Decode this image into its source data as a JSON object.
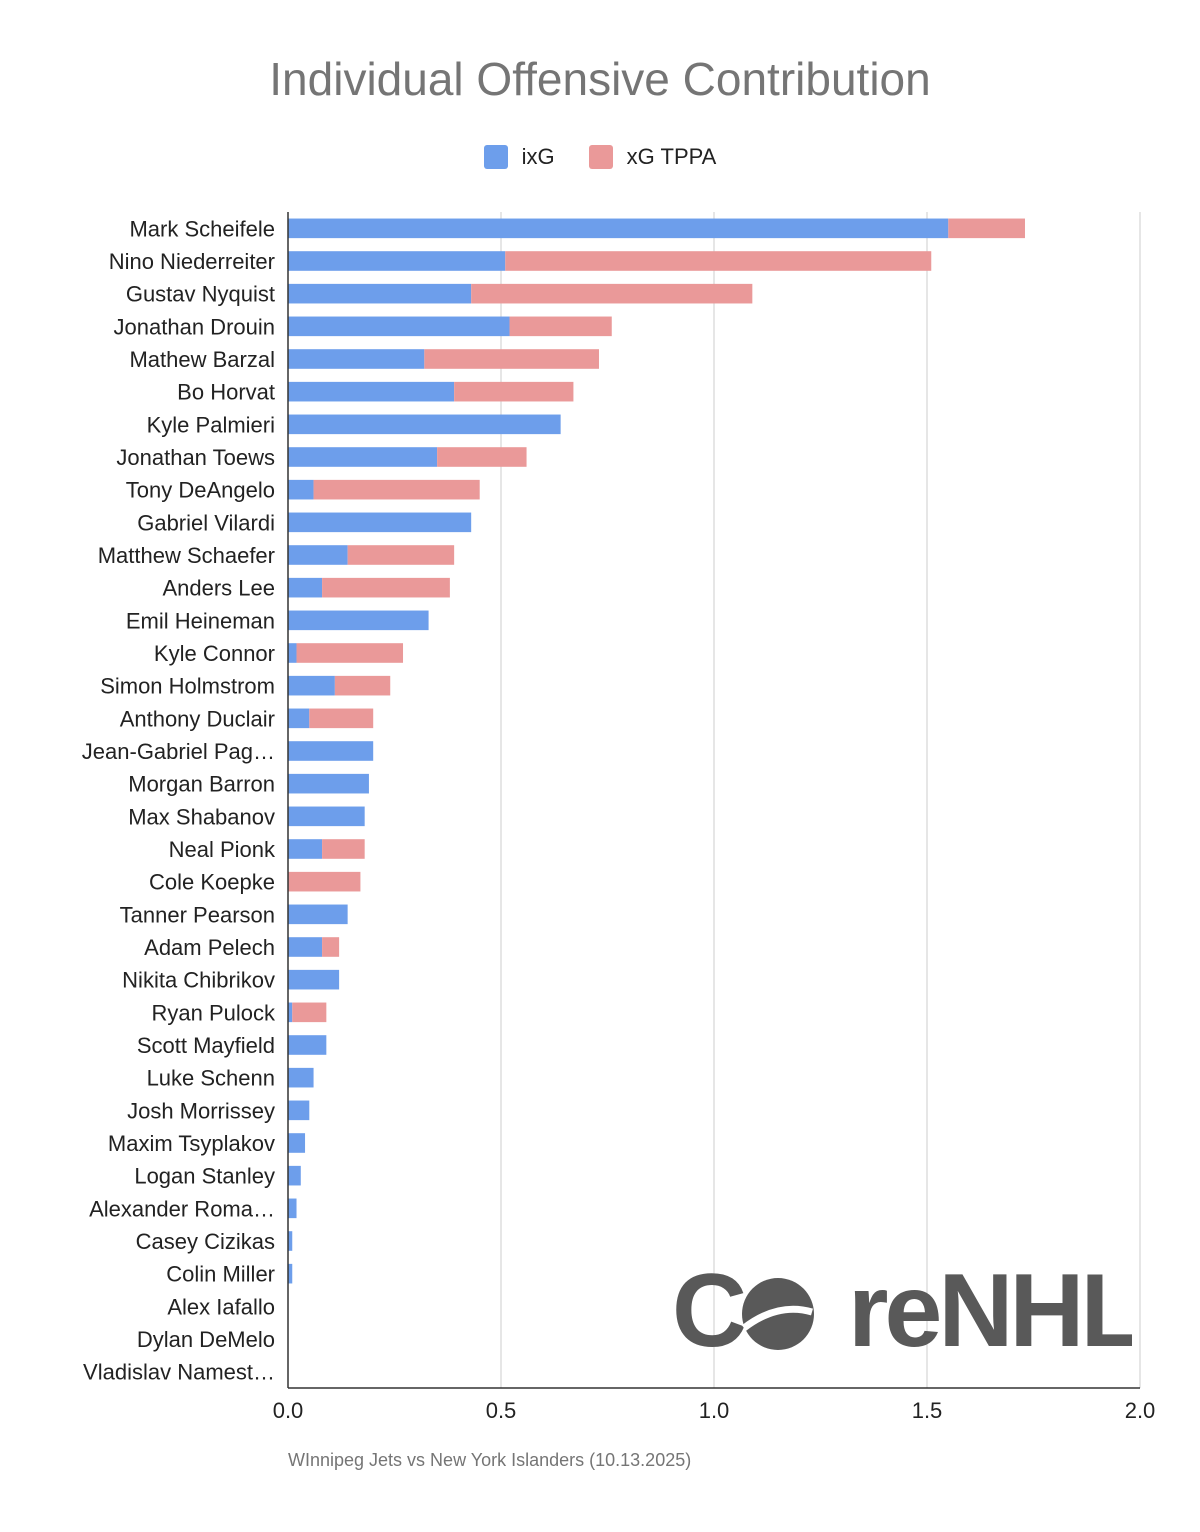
{
  "chart_data": {
    "type": "bar",
    "orientation": "horizontal",
    "stacked": true,
    "title": "Individual Offensive Contribution",
    "legend_position": "top",
    "xlabel": "",
    "ylabel": "",
    "xlim": [
      0,
      2.0
    ],
    "xticks": [
      "0.0",
      "0.5",
      "1.0",
      "1.5",
      "2.0"
    ],
    "categories": [
      "Mark Scheifele",
      "Nino Niederreiter",
      "Gustav Nyquist",
      "Jonathan Drouin",
      "Mathew Barzal",
      "Bo Horvat",
      "Kyle Palmieri",
      "Jonathan Toews",
      "Tony DeAngelo",
      "Gabriel Vilardi",
      "Matthew Schaefer",
      "Anders Lee",
      "Emil Heineman",
      "Kyle Connor",
      "Simon Holmstrom",
      "Anthony Duclair",
      "Jean-Gabriel Pag…",
      "Morgan Barron",
      "Max Shabanov",
      "Neal Pionk",
      "Cole Koepke",
      "Tanner Pearson",
      "Adam Pelech",
      "Nikita Chibrikov",
      "Ryan Pulock",
      "Scott Mayfield",
      "Luke Schenn",
      "Josh Morrissey",
      "Maxim Tsyplakov",
      "Logan Stanley",
      "Alexander Roma…",
      "Casey Cizikas",
      "Colin Miller",
      "Alex Iafallo",
      "Dylan DeMelo",
      "Vladislav Namest…"
    ],
    "series": [
      {
        "name": "ixG",
        "color": "#6d9eeb",
        "values": [
          1.55,
          0.51,
          0.43,
          0.52,
          0.32,
          0.39,
          0.64,
          0.35,
          0.06,
          0.43,
          0.14,
          0.08,
          0.33,
          0.02,
          0.11,
          0.05,
          0.2,
          0.19,
          0.18,
          0.08,
          0.0,
          0.14,
          0.08,
          0.12,
          0.01,
          0.09,
          0.06,
          0.05,
          0.04,
          0.03,
          0.02,
          0.01,
          0.01,
          0.0,
          0.0,
          0.0
        ]
      },
      {
        "name": "xG TPPA",
        "color": "#ea9999",
        "values": [
          0.18,
          1.0,
          0.66,
          0.24,
          0.41,
          0.28,
          0.0,
          0.21,
          0.39,
          0.0,
          0.25,
          0.3,
          0.0,
          0.25,
          0.13,
          0.15,
          0.0,
          0.0,
          0.0,
          0.1,
          0.17,
          0.0,
          0.04,
          0.0,
          0.08,
          0.0,
          0.0,
          0.0,
          0.0,
          0.0,
          0.0,
          0.0,
          0.0,
          0.0,
          0.0,
          0.0
        ]
      }
    ]
  },
  "caption": "WInnipeg Jets vs New York Islanders (10.13.2025)",
  "watermark": {
    "text": "CoreNHL",
    "prefix": "C",
    "suffix": "reNHL",
    "color": "#595959"
  }
}
